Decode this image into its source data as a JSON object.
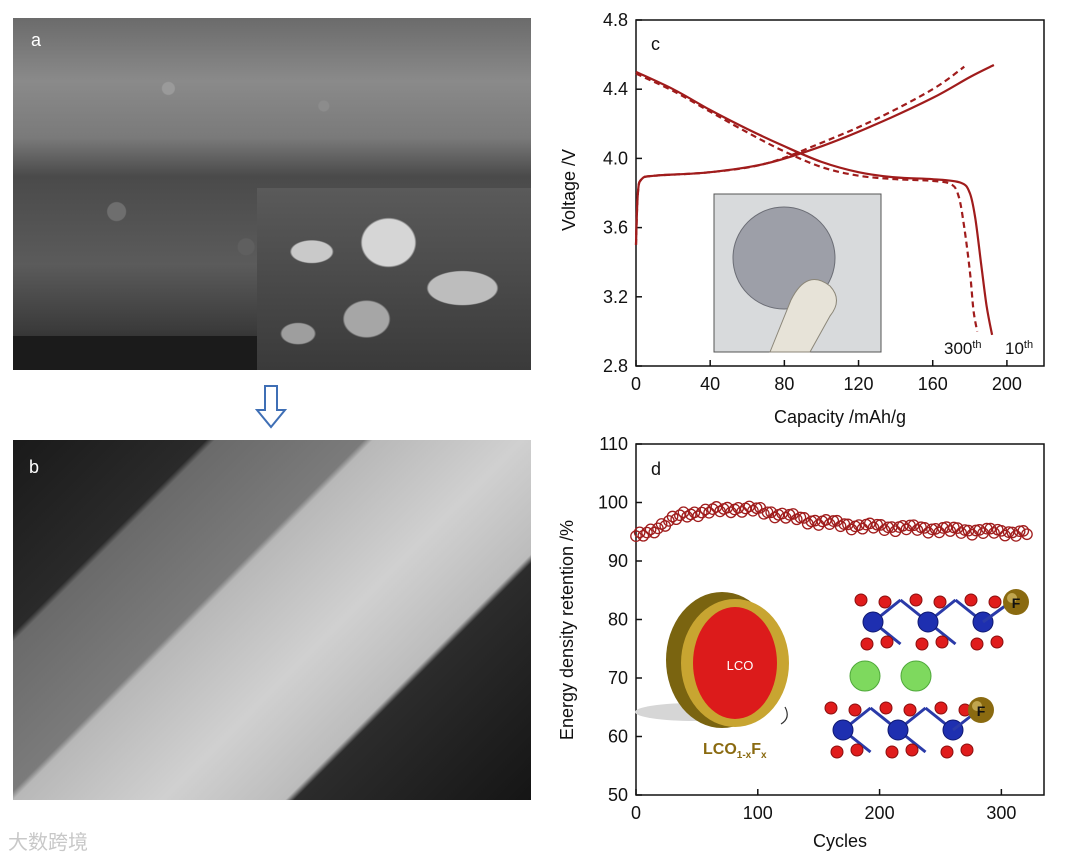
{
  "panel_a": {
    "label": "a"
  },
  "panel_b": {
    "label": "b"
  },
  "watermark": "大数跨境",
  "chart_data": [
    {
      "panel": "c",
      "type": "line",
      "xlabel": "Capacity /mAh/g",
      "ylabel": "Voltage /V",
      "xlim": [
        0,
        220
      ],
      "ylim": [
        2.8,
        4.8
      ],
      "xticks": [
        0,
        40,
        80,
        120,
        160,
        200
      ],
      "yticks": [
        2.8,
        3.2,
        3.6,
        4.0,
        4.4,
        4.8
      ],
      "annotations": [
        "300",
        "th",
        "10",
        "th"
      ],
      "series": [
        {
          "name": "10th",
          "style": "solid",
          "segment": "charge",
          "x": [
            0,
            1,
            3,
            10,
            40,
            70,
            100,
            130,
            160,
            180,
            193
          ],
          "y": [
            3.5,
            3.8,
            3.88,
            3.9,
            3.92,
            3.97,
            4.07,
            4.2,
            4.35,
            4.47,
            4.54
          ]
        },
        {
          "name": "10th",
          "style": "solid",
          "segment": "discharge",
          "x": [
            0,
            20,
            40,
            60,
            80,
            100,
            120,
            140,
            160,
            175,
            180,
            183,
            186,
            189,
            192
          ],
          "y": [
            4.5,
            4.4,
            4.28,
            4.17,
            4.07,
            3.98,
            3.92,
            3.89,
            3.88,
            3.86,
            3.8,
            3.65,
            3.4,
            3.15,
            2.98
          ]
        },
        {
          "name": "300th",
          "style": "dashed",
          "segment": "charge",
          "x": [
            0,
            1,
            3,
            10,
            40,
            70,
            100,
            130,
            160,
            177
          ],
          "y": [
            3.5,
            3.8,
            3.88,
            3.9,
            3.92,
            3.97,
            4.09,
            4.23,
            4.4,
            4.53
          ]
        },
        {
          "name": "300th",
          "style": "dashed",
          "segment": "discharge",
          "x": [
            0,
            20,
            40,
            60,
            80,
            100,
            120,
            140,
            160,
            170,
            174,
            177,
            180,
            182,
            184
          ],
          "y": [
            4.49,
            4.39,
            4.27,
            4.15,
            4.04,
            3.95,
            3.9,
            3.88,
            3.87,
            3.85,
            3.78,
            3.6,
            3.35,
            3.12,
            3.0
          ]
        }
      ],
      "color": "#a01c1c"
    },
    {
      "panel": "d",
      "type": "scatter",
      "xlabel": "Cycles",
      "ylabel": "Energy density retention /%",
      "xlim": [
        0,
        335
      ],
      "ylim": [
        50,
        110
      ],
      "xticks": [
        0,
        100,
        200,
        300
      ],
      "yticks": [
        50,
        60,
        70,
        80,
        90,
        100,
        110
      ],
      "marker": "open-circle",
      "color": "#a01c1c",
      "series": [
        {
          "x": [
            0,
            40,
            80,
            100,
            140,
            180,
            220,
            260,
            300,
            320
          ],
          "y": [
            94.0,
            98.0,
            99.0,
            98.7,
            97.0,
            96.0,
            95.7,
            95.3,
            95.0,
            94.8
          ]
        }
      ],
      "annotations": [
        "LCO",
        "LCO",
        "1-x",
        "F",
        "x",
        "F",
        "F"
      ]
    }
  ]
}
